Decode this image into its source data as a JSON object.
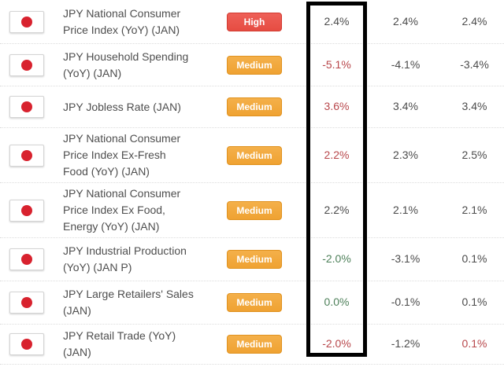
{
  "colors": {
    "neutral_value": "#4b4b4b",
    "negative_value": "#b8474b",
    "positive_value": "#4e805a",
    "event_text": "#4e4e4e",
    "high_badge": "#e64c42",
    "medium_badge": "#efa232",
    "highlight_border": "#000000",
    "japan_flag_red": "#d8222e"
  },
  "table": {
    "highlight": "actual-column",
    "rows": [
      {
        "flag": "japan",
        "event": "JPY National Consumer\nPrice Index (YoY) (JAN)",
        "importance": "High",
        "importance_level": "high",
        "actual": {
          "text": "2.4%",
          "tone": "neutral"
        },
        "forecast": {
          "text": "2.4%",
          "tone": "neutral"
        },
        "previous": {
          "text": "2.4%",
          "tone": "neutral"
        }
      },
      {
        "flag": "japan",
        "event": "JPY Household Spending\n(YoY) (JAN)",
        "importance": "Medium",
        "importance_level": "medium",
        "actual": {
          "text": "-5.1%",
          "tone": "negative"
        },
        "forecast": {
          "text": "-4.1%",
          "tone": "neutral"
        },
        "previous": {
          "text": "-3.4%",
          "tone": "neutral"
        }
      },
      {
        "flag": "japan",
        "event": "JPY Jobless Rate (JAN)",
        "importance": "Medium",
        "importance_level": "medium",
        "actual": {
          "text": "3.6%",
          "tone": "negative"
        },
        "forecast": {
          "text": "3.4%",
          "tone": "neutral"
        },
        "previous": {
          "text": "3.4%",
          "tone": "neutral"
        }
      },
      {
        "flag": "japan",
        "event": "JPY National Consumer\nPrice Index Ex-Fresh\nFood (YoY) (JAN)",
        "importance": "Medium",
        "importance_level": "medium",
        "actual": {
          "text": "2.2%",
          "tone": "negative"
        },
        "forecast": {
          "text": "2.3%",
          "tone": "neutral"
        },
        "previous": {
          "text": "2.5%",
          "tone": "neutral"
        }
      },
      {
        "flag": "japan",
        "event": "JPY National Consumer\nPrice Index Ex Food,\nEnergy (YoY) (JAN)",
        "importance": "Medium",
        "importance_level": "medium",
        "actual": {
          "text": "2.2%",
          "tone": "neutral"
        },
        "forecast": {
          "text": "2.1%",
          "tone": "neutral"
        },
        "previous": {
          "text": "2.1%",
          "tone": "neutral"
        }
      },
      {
        "flag": "japan",
        "event": "JPY Industrial Production\n(YoY) (JAN P)",
        "importance": "Medium",
        "importance_level": "medium",
        "actual": {
          "text": "-2.0%",
          "tone": "positive"
        },
        "forecast": {
          "text": "-3.1%",
          "tone": "neutral"
        },
        "previous": {
          "text": "0.1%",
          "tone": "neutral"
        }
      },
      {
        "flag": "japan",
        "event": "JPY Large Retailers' Sales\n(JAN)",
        "importance": "Medium",
        "importance_level": "medium",
        "actual": {
          "text": "0.0%",
          "tone": "positive"
        },
        "forecast": {
          "text": "-0.1%",
          "tone": "neutral"
        },
        "previous": {
          "text": "0.1%",
          "tone": "neutral"
        }
      },
      {
        "flag": "japan",
        "event": "JPY Retail Trade (YoY)\n(JAN)",
        "importance": "Medium",
        "importance_level": "medium",
        "actual": {
          "text": "-2.0%",
          "tone": "negative"
        },
        "forecast": {
          "text": "-1.2%",
          "tone": "neutral"
        },
        "previous": {
          "text": "0.1%",
          "tone": "negative"
        }
      }
    ]
  }
}
